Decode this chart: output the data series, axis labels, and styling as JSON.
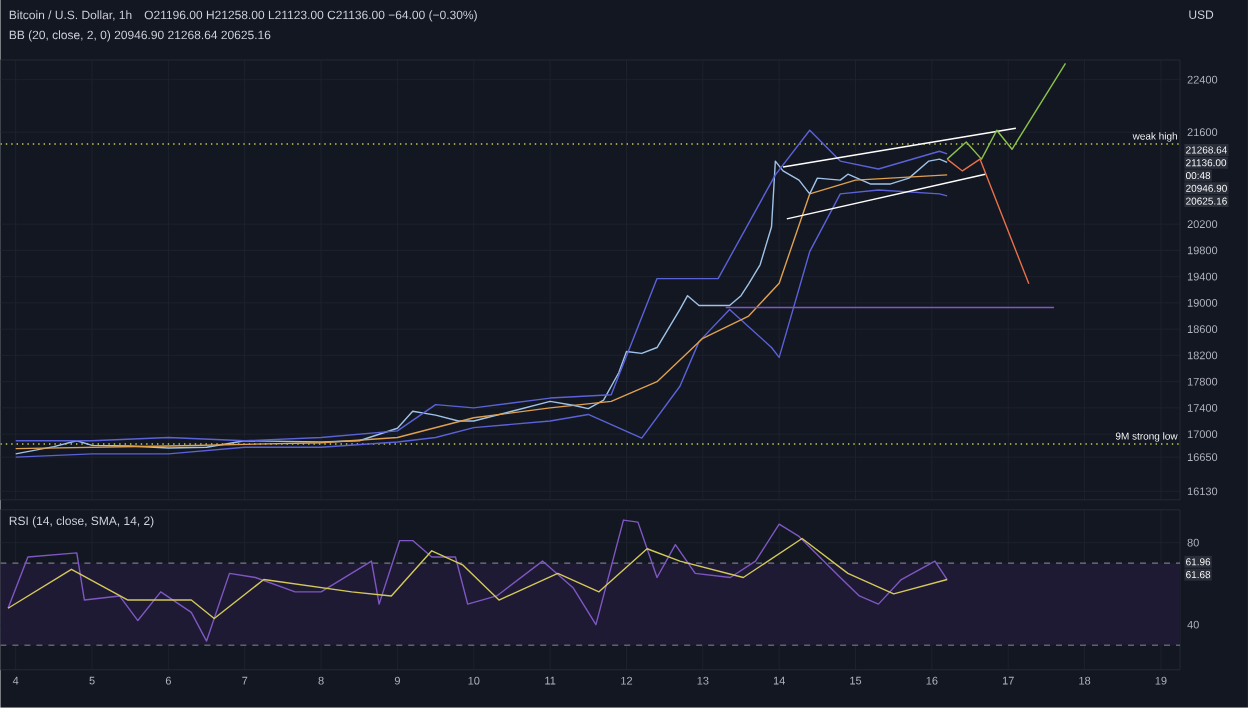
{
  "chart_data": [
    {
      "type": "line",
      "title": "Bitcoin / U.S. Dollar, 1h",
      "subtitle": "O21196.00 H21258.00 L21123.00 C21136.00 −64.00 (−0.30%)",
      "ylabel": "USD",
      "annotations": [
        "BB (20, close, 2, 0) 20946.90 21268.64 20625.16",
        "21268.64",
        "21136.00",
        "00:48",
        "20946.90",
        "20625.16"
      ],
      "xlim": [
        3.8,
        19.25
      ],
      "xticks": [
        4,
        5,
        6,
        7,
        8,
        9,
        10,
        11,
        12,
        13,
        14,
        15,
        16,
        17,
        18,
        19
      ],
      "ylim": [
        16000,
        22700
      ],
      "yticks": [
        16130,
        16650,
        17000,
        17400,
        17800,
        18200,
        18600,
        19000,
        19400,
        19800,
        20200,
        21600,
        22400
      ],
      "tick_labels": "y",
      "grid": true,
      "ref_lines": [
        {
          "axis": "y",
          "value": 21420,
          "label": "weak high",
          "color": "#c8d44a",
          "line_style": "dotted"
        },
        {
          "axis": "y",
          "value": 16850,
          "label": "9M strong low",
          "color": "#c8d44a",
          "line_style": "dotted"
        }
      ],
      "series": [
        {
          "color": "#9fc3e8",
          "x": [
            4.0,
            4.5,
            4.8,
            5.0,
            5.5,
            6.0,
            6.5,
            7.0,
            7.5,
            8.0,
            8.5,
            9.0,
            9.2,
            9.5,
            9.8,
            10.0,
            10.5,
            11.0,
            11.3,
            11.5,
            11.7,
            11.9,
            12.0,
            12.2,
            12.4,
            12.7,
            12.8,
            12.95,
            13.35,
            13.5,
            13.6,
            13.75,
            13.9,
            13.95,
            14.05,
            14.26,
            14.4,
            14.5,
            14.8,
            14.9,
            15.2,
            15.45,
            15.7,
            15.96,
            16.1,
            16.2
          ],
          "values": [
            16700,
            16810,
            16900,
            16830,
            16820,
            16790,
            16800,
            16900,
            16890,
            16880,
            16900,
            17090,
            17350,
            17290,
            17200,
            17200,
            17350,
            17500,
            17440,
            17390,
            17520,
            17940,
            18260,
            18230,
            18320,
            18900,
            19110,
            18960,
            18960,
            19110,
            19290,
            19580,
            20160,
            21160,
            21010,
            20870,
            20660,
            20900,
            20870,
            20960,
            20810,
            20810,
            20900,
            21160,
            21190,
            21140
          ]
        },
        {
          "color": "#5b62d8",
          "x": [
            4,
            5,
            6,
            7,
            8,
            9,
            9.5,
            10,
            11,
            11.8,
            12.4,
            13.2,
            13.95,
            14.4,
            14.8,
            15.3,
            16.1,
            16.2
          ],
          "values": [
            16900,
            16900,
            16950,
            16900,
            16950,
            17050,
            17450,
            17400,
            17550,
            17600,
            19370,
            19370,
            20950,
            21630,
            21160,
            21040,
            21310,
            21270
          ]
        },
        {
          "color": "#5b62d8",
          "x": [
            4,
            5,
            6,
            7,
            8,
            9,
            9.5,
            10,
            11,
            11.5,
            12.2,
            12.7,
            12.95,
            13.35,
            13.9,
            14.0,
            14.4,
            14.8,
            15.3,
            16.1,
            16.2
          ],
          "values": [
            16650,
            16700,
            16700,
            16800,
            16800,
            16880,
            16950,
            17100,
            17200,
            17300,
            16940,
            17730,
            18410,
            18900,
            18320,
            18170,
            19780,
            20660,
            20720,
            20660,
            20630
          ]
        },
        {
          "color": "#e0a050",
          "x": [
            4,
            6,
            8,
            9,
            10,
            11,
            11.8,
            12.4,
            13,
            13.6,
            14,
            14.4,
            15,
            16.2
          ],
          "values": [
            16780,
            16820,
            16870,
            16950,
            17250,
            17400,
            17500,
            17800,
            18460,
            18800,
            19300,
            20660,
            20870,
            20950
          ]
        },
        {
          "color": "#ffffff",
          "x": [
            14.05,
            17.1
          ],
          "values": [
            21070,
            21660
          ]
        },
        {
          "color": "#ffffff",
          "x": [
            14.1,
            16.7
          ],
          "values": [
            20280,
            20960
          ]
        },
        {
          "color": "#8bc34a",
          "x": [
            16.2,
            16.45,
            16.65,
            16.85,
            17.05,
            17.75
          ],
          "values": [
            21190,
            21450,
            21190,
            21630,
            21340,
            22650
          ]
        },
        {
          "color": "#e8704a",
          "x": [
            16.2,
            16.4,
            16.63,
            17.27
          ],
          "values": [
            21190,
            21010,
            21190,
            19290
          ]
        },
        {
          "color": "#7e57c2",
          "x": [
            13.3,
            17.6
          ],
          "values": [
            18930,
            18930
          ]
        }
      ]
    },
    {
      "type": "line",
      "title": "RSI (14, close, SMA, 14, 2)",
      "annotations": [
        "61.96",
        "61.68"
      ],
      "xlim": [
        3.8,
        19.25
      ],
      "xticks": [
        4,
        5,
        6,
        7,
        8,
        9,
        10,
        11,
        12,
        13,
        14,
        15,
        16,
        17,
        18,
        19
      ],
      "ylim": [
        18,
        96
      ],
      "yticks": [
        40,
        80
      ],
      "grid": true,
      "bands": [
        {
          "axis": "y",
          "from": 30,
          "to": 70,
          "color": "#1e1a33"
        }
      ],
      "ref_lines": [
        {
          "axis": "y",
          "value": 70,
          "color": "#787b86",
          "line_style": "dashed"
        },
        {
          "axis": "y",
          "value": 30,
          "color": "#787b86",
          "line_style": "dashed"
        }
      ],
      "series": [
        {
          "color": "#7e57c2",
          "x": [
            3.9,
            4.16,
            4.8,
            4.9,
            5.36,
            5.6,
            5.9,
            6.3,
            6.5,
            6.8,
            7.14,
            7.66,
            8.0,
            8.66,
            8.76,
            9.03,
            9.2,
            9.45,
            9.76,
            9.92,
            10.3,
            10.9,
            11.3,
            11.6,
            11.96,
            12.15,
            12.4,
            12.64,
            12.9,
            13.36,
            13.69,
            14.0,
            14.26,
            14.8,
            15.05,
            15.3,
            15.6,
            16.04,
            16.2
          ],
          "values": [
            48,
            73,
            75,
            52,
            54,
            42,
            56,
            46,
            32,
            65,
            63,
            56,
            56,
            71,
            50,
            81,
            81,
            73,
            73,
            50,
            54,
            71,
            58,
            40,
            91,
            90,
            63,
            79,
            65,
            63,
            71,
            89,
            83,
            63,
            54,
            50,
            62,
            71,
            62
          ]
        },
        {
          "color": "#d4c95a",
          "x": [
            3.9,
            4.73,
            5.47,
            6.3,
            6.6,
            7.25,
            8.4,
            8.92,
            9.45,
            9.86,
            10.33,
            11.1,
            11.64,
            12.27,
            12.7,
            13.53,
            14.3,
            14.9,
            15.5,
            16.2
          ],
          "values": [
            48,
            67,
            52,
            52,
            43,
            62,
            56,
            54,
            76,
            69,
            52,
            65,
            56,
            77,
            71,
            63,
            82,
            65,
            55,
            62
          ]
        }
      ]
    }
  ]
}
